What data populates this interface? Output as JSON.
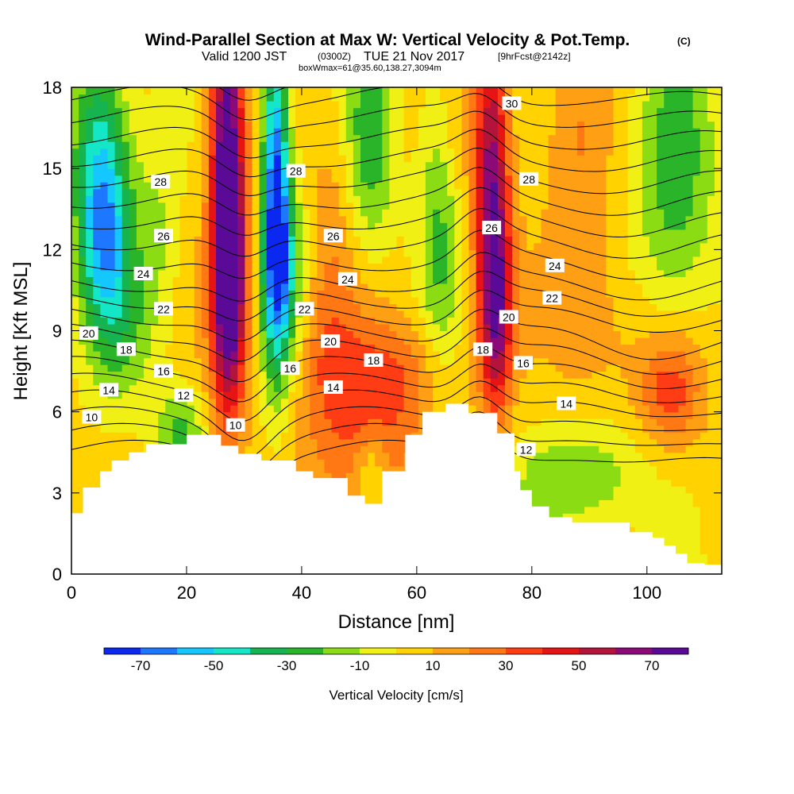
{
  "chart_data": {
    "type": "heatmap",
    "title_main": "Wind-Parallel Section at Max W: Vertical Velocity & Pot.Temp.",
    "title_mark": "(C)",
    "subtitle_valid": "Valid 1200 JST",
    "subtitle_utc": "(0300Z)",
    "subtitle_date": "TUE 21 Nov 2017",
    "subtitle_fcst": "[9hrFcst@2142z]",
    "subtitle_box": "boxWmax=61@35.60,138.27,3094m",
    "xlabel": "Distance [nm]",
    "ylabel": "Height [Kft MSL]",
    "xlim": [
      0,
      113
    ],
    "ylim": [
      0,
      18
    ],
    "x_ticks": [
      0,
      20,
      40,
      60,
      80,
      100
    ],
    "x_tick_labels": [
      "0",
      "20",
      "40",
      "60",
      "80",
      "100"
    ],
    "y_ticks": [
      0,
      3,
      6,
      9,
      12,
      15,
      18
    ],
    "y_tick_labels": [
      "0",
      "3",
      "6",
      "9",
      "12",
      "15",
      "18"
    ],
    "colorbar": {
      "label": "Vertical Velocity [cm/s]",
      "bounds": [
        -80,
        -70,
        -60,
        -50,
        -40,
        -30,
        -20,
        -10,
        0,
        10,
        20,
        30,
        40,
        50,
        60,
        70,
        80
      ],
      "tick_values": [
        -70,
        -50,
        -30,
        -10,
        10,
        30,
        50,
        70
      ],
      "tick_labels": [
        "-70",
        "-50",
        "-30",
        "-10",
        "10",
        "30",
        "50",
        "70"
      ],
      "colors": [
        "#0a28f0",
        "#1e78ff",
        "#14c8ff",
        "#14e6c8",
        "#16b450",
        "#2ab42a",
        "#8cdc14",
        "#f0f014",
        "#ffd200",
        "#ffa014",
        "#ff7814",
        "#ff3c14",
        "#e61414",
        "#b4143c",
        "#8c0a78",
        "#5a0a96"
      ]
    },
    "terrain": {
      "x": [
        0,
        2,
        2,
        5,
        5,
        7,
        7,
        10,
        10,
        13,
        13,
        16,
        16,
        20,
        20,
        26,
        26,
        29,
        29,
        33,
        33,
        39,
        39,
        42,
        42,
        48,
        48,
        51,
        51,
        54,
        54,
        58,
        58,
        61,
        61,
        65,
        65,
        69,
        69,
        74,
        74,
        77,
        77,
        78,
        78,
        80,
        80,
        83,
        83,
        87,
        87,
        90,
        90,
        97,
        97,
        101,
        101,
        103,
        103,
        105,
        105,
        107,
        107,
        110,
        110,
        113
      ],
      "y": [
        2.25,
        2.25,
        3.2,
        3.2,
        3.8,
        3.8,
        4.2,
        4.2,
        4.5,
        4.5,
        4.8,
        4.8,
        4.8,
        4.8,
        5.15,
        5.15,
        4.75,
        4.75,
        4.45,
        4.45,
        4.2,
        4.2,
        3.8,
        3.8,
        3.55,
        3.55,
        2.9,
        2.9,
        2.6,
        2.6,
        3.8,
        3.8,
        5.15,
        5.15,
        6.0,
        6.0,
        6.3,
        6.3,
        5.95,
        5.95,
        5.2,
        5.2,
        3.8,
        3.8,
        3.1,
        3.1,
        2.5,
        2.5,
        2.1,
        2.1,
        1.9,
        1.9,
        1.9,
        1.9,
        1.55,
        1.55,
        1.35,
        1.35,
        1.05,
        1.05,
        0.75,
        0.75,
        0.4,
        0.4,
        0.35,
        0.35
      ]
    },
    "w_centers": [
      {
        "x": 27,
        "y": 14.5,
        "w": 80,
        "sx": 2.0,
        "sy": 5.5
      },
      {
        "x": 28,
        "y": 10.5,
        "w": 40,
        "sx": 2.2,
        "sy": 3.0
      },
      {
        "x": 73,
        "y": 14.5,
        "w": 62,
        "sx": 2.2,
        "sy": 4.5
      },
      {
        "x": 74,
        "y": 9.5,
        "w": 40,
        "sx": 1.8,
        "sy": 2.5
      },
      {
        "x": 35.5,
        "y": 14.5,
        "w": -72,
        "sx": 1.6,
        "sy": 4.5
      },
      {
        "x": 37,
        "y": 11.0,
        "w": -40,
        "sx": 2.5,
        "sy": 2.5
      },
      {
        "x": 5,
        "y": 15.5,
        "w": -50,
        "sx": 3.5,
        "sy": 3.0
      },
      {
        "x": 6,
        "y": 12.2,
        "w": -35,
        "sx": 3.0,
        "sy": 2.0
      },
      {
        "x": 19,
        "y": 5.3,
        "w": -28,
        "sx": 3.0,
        "sy": 1.2
      },
      {
        "x": 104,
        "y": 6.8,
        "w": 32,
        "sx": 4.0,
        "sy": 1.5
      },
      {
        "x": 51,
        "y": 5.0,
        "w": 25,
        "sx": 7.0,
        "sy": 2.5
      },
      {
        "x": 58,
        "y": 7.5,
        "w": 18,
        "sx": 6.0,
        "sy": 1.5
      },
      {
        "x": 8,
        "y": 9.2,
        "w": -22,
        "sx": 4.0,
        "sy": 2.0
      },
      {
        "x": 64,
        "y": 13.5,
        "w": -25,
        "sx": 2.5,
        "sy": 4.5
      },
      {
        "x": 52,
        "y": 16.0,
        "w": -30,
        "sx": 3.0,
        "sy": 3.0
      },
      {
        "x": 105,
        "y": 14.5,
        "w": -30,
        "sx": 5.0,
        "sy": 4.0
      },
      {
        "x": 88,
        "y": 14.0,
        "w": 15,
        "sx": 4.0,
        "sy": 5.0
      },
      {
        "x": 45,
        "y": 12.5,
        "w": 12,
        "sx": 3.0,
        "sy": 3.0
      },
      {
        "x": 44,
        "y": 8.0,
        "w": 15,
        "sx": 5.0,
        "sy": 2.0
      },
      {
        "x": 93,
        "y": 9.0,
        "w": 10,
        "sx": 5.0,
        "sy": 2.0
      },
      {
        "x": 88,
        "y": 3.5,
        "w": -25,
        "sx": 8.0,
        "sy": 1.5
      },
      {
        "x": 52,
        "y": 3.8,
        "w": -22,
        "sx": 2.0,
        "sy": 1.2
      },
      {
        "x": 15,
        "y": 12.5,
        "w": -15,
        "sx": 3.0,
        "sy": 3.0
      },
      {
        "x": 66,
        "y": 16.5,
        "w": 10,
        "sx": 2.0,
        "sy": 2.0
      }
    ],
    "theta_contour_labels": [
      {
        "text": "30",
        "x": 76.5,
        "y": 17.4
      },
      {
        "text": "28",
        "x": 15.5,
        "y": 14.5
      },
      {
        "text": "28",
        "x": 39.0,
        "y": 14.9
      },
      {
        "text": "28",
        "x": 79.5,
        "y": 14.6
      },
      {
        "text": "26",
        "x": 16.0,
        "y": 12.5
      },
      {
        "text": "26",
        "x": 45.5,
        "y": 12.5
      },
      {
        "text": "26",
        "x": 73.0,
        "y": 12.8
      },
      {
        "text": "24",
        "x": 12.5,
        "y": 11.1
      },
      {
        "text": "24",
        "x": 48.0,
        "y": 10.9
      },
      {
        "text": "24",
        "x": 84.0,
        "y": 11.4
      },
      {
        "text": "22",
        "x": 16.0,
        "y": 9.8
      },
      {
        "text": "22",
        "x": 40.5,
        "y": 9.8
      },
      {
        "text": "22",
        "x": 83.5,
        "y": 10.2
      },
      {
        "text": "20",
        "x": 3.0,
        "y": 8.9
      },
      {
        "text": "20",
        "x": 45.0,
        "y": 8.6
      },
      {
        "text": "20",
        "x": 76.0,
        "y": 9.5
      },
      {
        "text": "18",
        "x": 9.5,
        "y": 8.3
      },
      {
        "text": "18",
        "x": 52.5,
        "y": 7.9
      },
      {
        "text": "18",
        "x": 71.5,
        "y": 8.3
      },
      {
        "text": "16",
        "x": 16.0,
        "y": 7.5
      },
      {
        "text": "16",
        "x": 38.0,
        "y": 7.6
      },
      {
        "text": "16",
        "x": 78.5,
        "y": 7.8
      },
      {
        "text": "14",
        "x": 6.5,
        "y": 6.8
      },
      {
        "text": "14",
        "x": 45.5,
        "y": 6.9
      },
      {
        "text": "14",
        "x": 86.0,
        "y": 6.3
      },
      {
        "text": "12",
        "x": 19.5,
        "y": 6.6
      },
      {
        "text": "12",
        "x": 79.0,
        "y": 4.6
      },
      {
        "text": "10",
        "x": 3.5,
        "y": 5.8
      },
      {
        "text": "10",
        "x": 28.5,
        "y": 5.5
      }
    ]
  }
}
